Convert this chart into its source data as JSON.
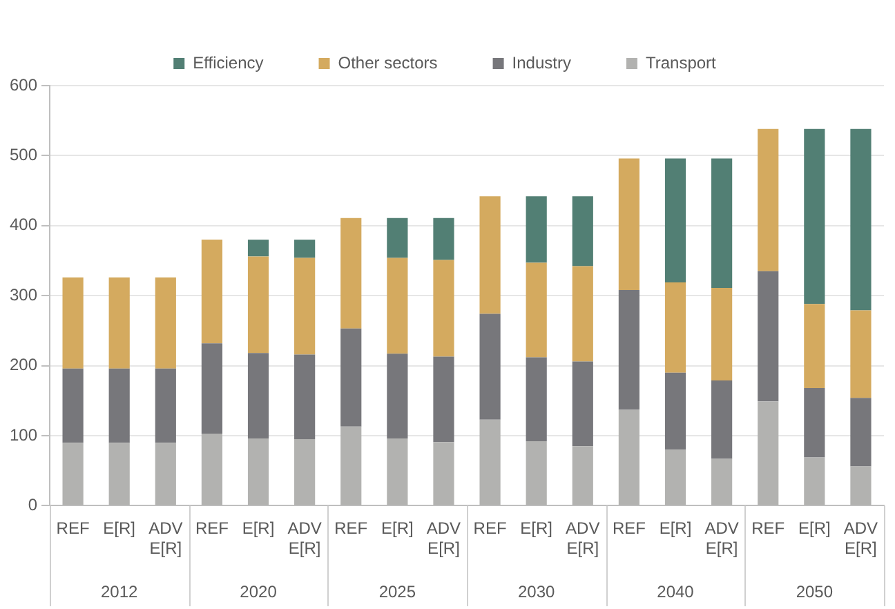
{
  "chart_data": {
    "type": "bar",
    "stacked": true,
    "categories": [
      "REF",
      "E[R]",
      "ADV E[R]",
      "REF",
      "E[R]",
      "ADV E[R]",
      "REF",
      "E[R]",
      "ADV E[R]",
      "REF",
      "E[R]",
      "ADV E[R]",
      "REF",
      "E[R]",
      "ADV E[R]",
      "REF",
      "E[R]",
      "ADV E[R]"
    ],
    "annotations": [
      "2012",
      "2020",
      "2025",
      "2030",
      "2040",
      "2050"
    ],
    "series": [
      {
        "name": "Transport",
        "color": "#b2b2b0",
        "values": [
          90,
          90,
          90,
          103,
          96,
          95,
          113,
          96,
          91,
          123,
          92,
          85,
          137,
          80,
          67,
          149,
          69,
          56
        ]
      },
      {
        "name": "Industry",
        "color": "#77777b",
        "values": [
          106,
          106,
          106,
          129,
          122,
          121,
          140,
          121,
          122,
          151,
          120,
          121,
          171,
          110,
          112,
          186,
          99,
          98
        ]
      },
      {
        "name": "Other sectors",
        "color": "#d4aa5f",
        "values": [
          130,
          130,
          130,
          148,
          138,
          138,
          158,
          137,
          138,
          168,
          135,
          136,
          188,
          129,
          132,
          203,
          120,
          125
        ]
      },
      {
        "name": "Efficiency",
        "color": "#527f74",
        "values": [
          0,
          0,
          0,
          0,
          24,
          26,
          0,
          57,
          60,
          0,
          95,
          100,
          0,
          177,
          185,
          0,
          250,
          259
        ]
      }
    ],
    "ylim": [
      0,
      600
    ],
    "yticks": [
      0,
      100,
      200,
      300,
      400,
      500,
      600
    ],
    "grid": "y",
    "legend": "top"
  }
}
